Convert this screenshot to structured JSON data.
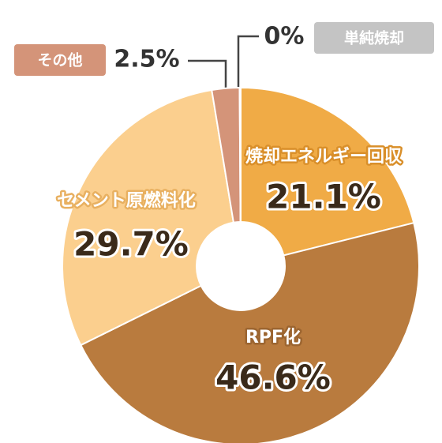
{
  "chart_data": {
    "type": "pie",
    "categories": [
      "焼却エネルギー回収",
      "RPF化",
      "セメント原燃料化",
      "その他",
      "単純焼却"
    ],
    "values": [
      21.1,
      46.6,
      29.7,
      2.5,
      0
    ],
    "value_labels": [
      "21.1%",
      "46.6%",
      "29.7%",
      "2.5%",
      "0%"
    ],
    "colors": [
      "#f0ab46",
      "#b97b3e",
      "#fbcf8e",
      "#d49479",
      "#c4c4c4"
    ]
  }
}
